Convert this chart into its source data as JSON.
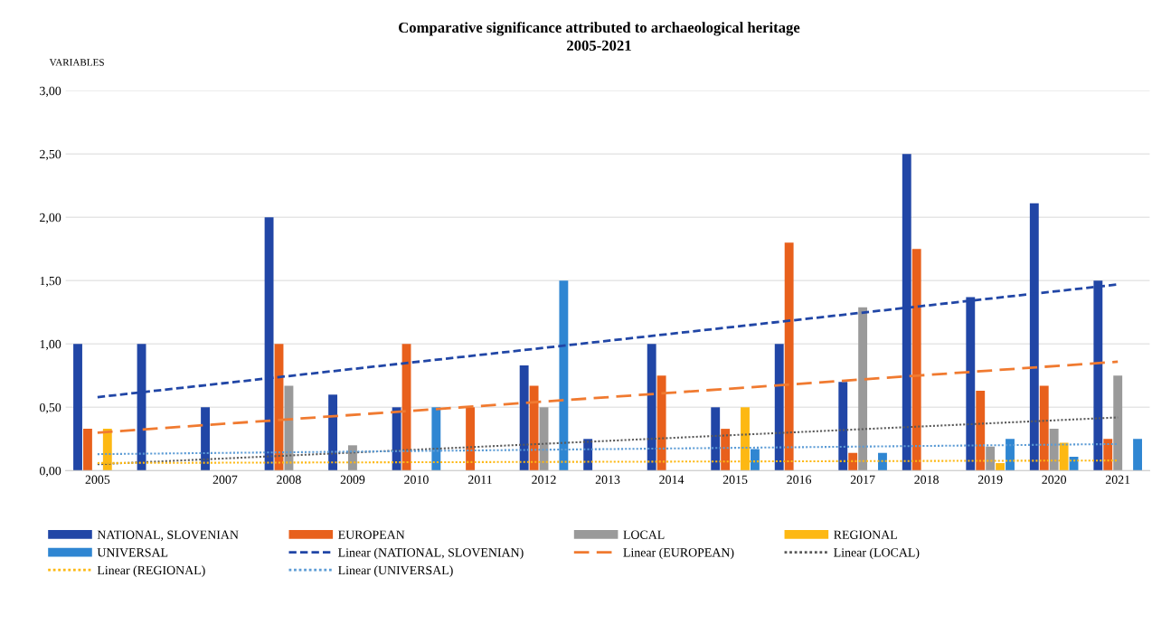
{
  "chart_data": {
    "type": "bar",
    "title": "Comparative significance attributed to archaeological heritage\n2005-2021",
    "ylabel": "VARIABLES",
    "categories": [
      "2005",
      null,
      "2007",
      "2008",
      "2009",
      "2010",
      "2011",
      "2012",
      "2013",
      "2014",
      "2015",
      "2016",
      "2017",
      "2018",
      "2019",
      "2020",
      "2021"
    ],
    "series": [
      {
        "name": "NATIONAL, SLOVENIAN",
        "color": "#2146a6",
        "values": [
          1.0,
          1.0,
          0.5,
          2.0,
          0.6,
          0.5,
          0,
          0.83,
          0.25,
          1.0,
          0.5,
          1.0,
          0.7,
          2.5,
          1.37,
          2.11,
          1.5
        ]
      },
      {
        "name": "EUROPEAN",
        "color": "#e8601c",
        "values": [
          0.33,
          0,
          0,
          1.0,
          0,
          1.0,
          0.5,
          0.67,
          0,
          0.75,
          0.33,
          1.8,
          0.14,
          1.75,
          0.63,
          0.67,
          0.25
        ]
      },
      {
        "name": "LOCAL",
        "color": "#9a9a9a",
        "values": [
          0,
          0,
          0,
          0.67,
          0.2,
          0,
          0,
          0.5,
          0,
          0,
          0,
          0,
          1.29,
          0,
          0.19,
          0.33,
          0.75
        ]
      },
      {
        "name": "REGIONAL",
        "color": "#fdb813",
        "values": [
          0.33,
          0,
          0,
          0,
          0,
          0,
          0,
          0,
          0,
          0,
          0.5,
          0,
          0,
          0,
          0.06,
          0.22,
          0
        ]
      },
      {
        "name": "UNIVERSAL",
        "color": "#2f86d2",
        "values": [
          0,
          0,
          0,
          0,
          0,
          0.5,
          0,
          1.5,
          0,
          0,
          0.17,
          0,
          0.14,
          0,
          0.25,
          0.11,
          0.25
        ]
      },
      {
        "name": "Linear (NATIONAL, SLOVENIAN)",
        "type": "line",
        "line_style": "dashed",
        "color": "#2146a6",
        "values": [
          0.58,
          null,
          null,
          null,
          null,
          null,
          null,
          null,
          null,
          null,
          null,
          null,
          null,
          null,
          null,
          null,
          1.47
        ]
      },
      {
        "name": "Linear (EUROPEAN)",
        "type": "line",
        "line_style": "longdash",
        "color": "#f07a30",
        "values": [
          0.3,
          null,
          null,
          null,
          null,
          null,
          null,
          null,
          null,
          null,
          null,
          null,
          null,
          null,
          null,
          null,
          0.86
        ]
      },
      {
        "name": "Linear (LOCAL)",
        "type": "line",
        "line_style": "dotted",
        "color": "#5a5a5a",
        "values": [
          0.05,
          null,
          null,
          null,
          null,
          null,
          null,
          null,
          null,
          null,
          null,
          null,
          null,
          null,
          null,
          null,
          0.42
        ]
      },
      {
        "name": "Linear (REGIONAL)",
        "type": "line",
        "line_style": "dotted",
        "color": "#fdb813",
        "values": [
          0.06,
          null,
          null,
          null,
          null,
          null,
          null,
          null,
          null,
          null,
          null,
          null,
          null,
          null,
          null,
          null,
          0.08
        ]
      },
      {
        "name": "Linear (UNIVERSAL)",
        "type": "line",
        "line_style": "dotted",
        "color": "#5b9bd5",
        "values": [
          0.13,
          null,
          null,
          null,
          null,
          null,
          null,
          null,
          null,
          null,
          null,
          null,
          null,
          null,
          null,
          null,
          0.21
        ]
      }
    ],
    "ylim": [
      0,
      3
    ],
    "yticks": [
      {
        "value": 0,
        "label": "0,00"
      },
      {
        "value": 0.5,
        "label": "0,50"
      },
      {
        "value": 1,
        "label": "1,00"
      },
      {
        "value": 1.5,
        "label": "1,50"
      },
      {
        "value": 2,
        "label": "2,00"
      },
      {
        "value": 2.5,
        "label": "2,50"
      },
      {
        "value": 3,
        "label": "3,00"
      }
    ],
    "grid": "y",
    "legend": "bottom"
  }
}
